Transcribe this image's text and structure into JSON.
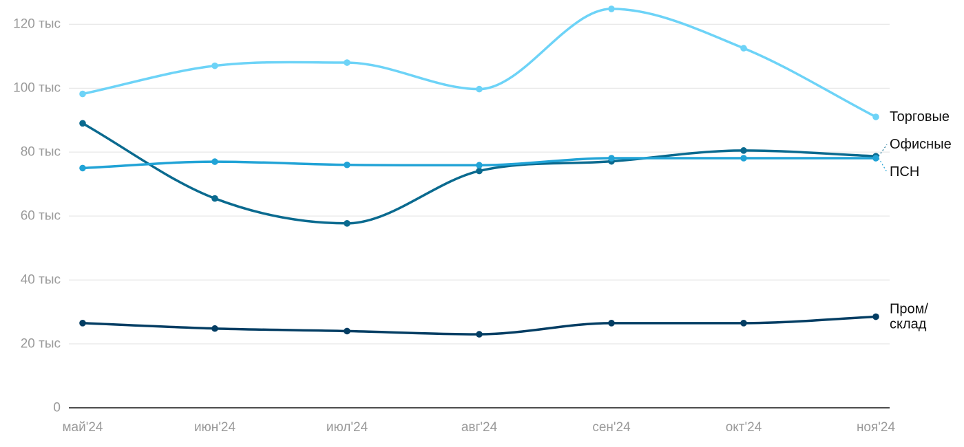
{
  "chart_data": {
    "type": "line",
    "categories": [
      "май'24",
      "июн'24",
      "июл'24",
      "авг'24",
      "сен'24",
      "окт'24",
      "ноя'24"
    ],
    "ylim": [
      0,
      125000
    ],
    "yticks": [
      0,
      20000,
      40000,
      60000,
      80000,
      100000,
      120000
    ],
    "ytick_labels": [
      "0",
      "20 тыс",
      "40 тыс",
      "60 тыс",
      "80 тыс",
      "100 тыс",
      "120 тыс"
    ],
    "grid": true,
    "legend": "direct labels at right end of lines",
    "series": [
      {
        "name": "Торговые",
        "color": "#6dd3f7",
        "values": [
          98200,
          107000,
          108000,
          99700,
          124800,
          112500,
          91000
        ]
      },
      {
        "name": "Офисные",
        "color": "#0a6a8f",
        "values": [
          89000,
          65500,
          57700,
          74100,
          77100,
          80500,
          78700
        ]
      },
      {
        "name": "ПСН",
        "color": "#21a3d6",
        "values": [
          75000,
          77000,
          76000,
          75900,
          78100,
          78100,
          78100
        ]
      },
      {
        "name": "Пром/склад",
        "name_lines": [
          "Пром/",
          "склад"
        ],
        "color": "#033d63",
        "values": [
          26500,
          24800,
          24000,
          23000,
          26500,
          26500,
          28500
        ]
      }
    ]
  }
}
